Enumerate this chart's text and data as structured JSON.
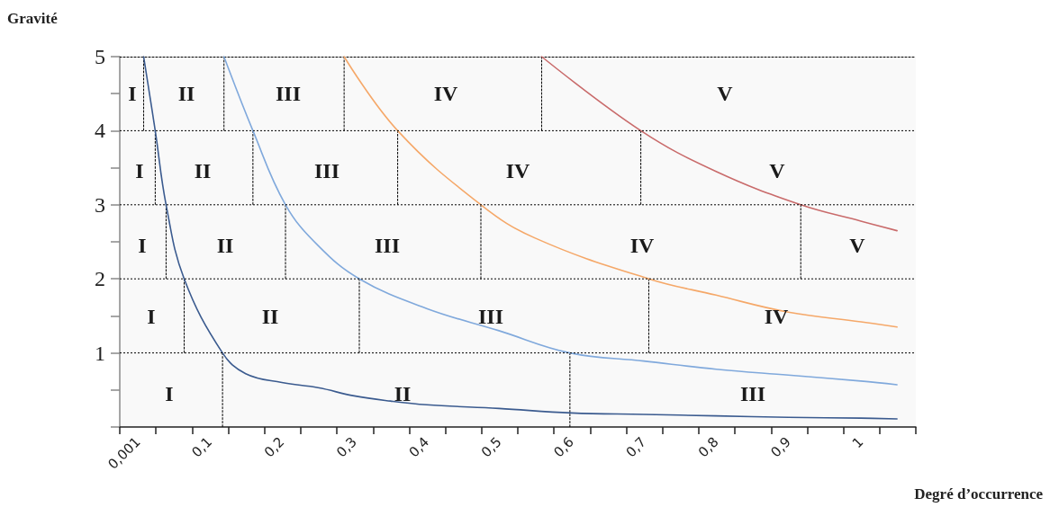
{
  "chart_data": {
    "type": "line",
    "xlabel": "Degré d’occurrence",
    "ylabel": "Gravité",
    "xlim": [
      -0.024,
      1.076
    ],
    "xticks": [
      {
        "value": 0.001,
        "label": "0,001"
      },
      {
        "value": 0.1,
        "label": "0,1"
      },
      {
        "value": 0.2,
        "label": "0,2"
      },
      {
        "value": 0.3,
        "label": "0,3"
      },
      {
        "value": 0.4,
        "label": "0,4"
      },
      {
        "value": 0.5,
        "label": "0,5"
      },
      {
        "value": 0.6,
        "label": "0,6"
      },
      {
        "value": 0.7,
        "label": "0,7"
      },
      {
        "value": 0.8,
        "label": "0,8"
      },
      {
        "value": 0.9,
        "label": "0,9"
      },
      {
        "value": 1,
        "label": "1"
      },
      {
        "value": -0.024,
        "label": null
      },
      {
        "value": 0.026,
        "label": null
      },
      {
        "value": 0.076,
        "label": null
      },
      {
        "value": 0.126,
        "label": null
      },
      {
        "value": 0.176,
        "label": null
      },
      {
        "value": 0.226,
        "label": null
      },
      {
        "value": 0.276,
        "label": null
      },
      {
        "value": 0.326,
        "label": null
      },
      {
        "value": 0.376,
        "label": null
      },
      {
        "value": 0.426,
        "label": null
      },
      {
        "value": 0.476,
        "label": null
      },
      {
        "value": 0.526,
        "label": null
      },
      {
        "value": 0.576,
        "label": null
      },
      {
        "value": 0.626,
        "label": null
      },
      {
        "value": 0.676,
        "label": null
      },
      {
        "value": 0.726,
        "label": null
      },
      {
        "value": 0.776,
        "label": null
      },
      {
        "value": 0.826,
        "label": null
      },
      {
        "value": 0.876,
        "label": null
      },
      {
        "value": 0.926,
        "label": null
      },
      {
        "value": 0.976,
        "label": null
      },
      {
        "value": 1.026,
        "label": null
      },
      {
        "value": 1.076,
        "label": null
      }
    ],
    "ylim": [
      0,
      5
    ],
    "yticks": [
      {
        "value": 0,
        "label": null
      },
      {
        "value": 0.5,
        "label": null
      },
      1,
      {
        "value": 1.5,
        "label": null
      },
      2,
      {
        "value": 2.5,
        "label": null
      },
      3,
      {
        "value": 3.5,
        "label": null
      },
      4,
      {
        "value": 4.5,
        "label": null
      },
      5
    ],
    "grid": false,
    "marker": "none",
    "line_style": "solid",
    "series": [
      {
        "color": "#3b5b8f",
        "x": [
          0.009,
          0.025,
          0.04,
          0.065,
          0.118,
          0.15,
          0.2,
          0.25,
          0.3,
          0.35,
          0.4,
          0.5,
          0.6,
          0.7,
          0.8,
          0.9,
          1.0,
          1.05
        ],
        "values": [
          5,
          4,
          3,
          2,
          1,
          0.72,
          0.6,
          0.53,
          0.42,
          0.35,
          0.3,
          0.25,
          0.19,
          0.17,
          0.15,
          0.13,
          0.12,
          0.11
        ]
      },
      {
        "color": "#80a9dc",
        "x": [
          0.12,
          0.16,
          0.205,
          0.25,
          0.307,
          0.4,
          0.5,
          0.598,
          0.7,
          0.8,
          0.9,
          1.0,
          1.05
        ],
        "values": [
          5,
          4,
          3,
          2.45,
          2,
          1.6,
          1.3,
          1,
          0.89,
          0.78,
          0.7,
          0.62,
          0.57
        ]
      },
      {
        "color": "#f5a869",
        "x": [
          0.286,
          0.36,
          0.475,
          0.55,
          0.707,
          0.8,
          0.9,
          1.0,
          1.05
        ],
        "values": [
          5,
          4,
          3,
          2.55,
          2,
          1.78,
          1.55,
          1.42,
          1.35
        ]
      },
      {
        "color": "#c96b6b",
        "x": [
          0.559,
          0.696,
          0.8,
          0.917,
          1.0,
          1.05
        ],
        "values": [
          5,
          4,
          3.45,
          3,
          2.78,
          2.65
        ]
      },
      {
        "color": "#000000",
        "line_style": "dotted",
        "x": [
          0.009,
          0.009
        ],
        "values": [
          5,
          4
        ]
      },
      {
        "color": "#000000",
        "line_style": "dotted",
        "x": [
          0.12,
          0.12
        ],
        "values": [
          5,
          4
        ]
      },
      {
        "color": "#000000",
        "line_style": "dotted",
        "x": [
          0.286,
          0.286
        ],
        "values": [
          5,
          4
        ]
      },
      {
        "color": "#000000",
        "line_style": "dotted",
        "x": [
          0.559,
          0.559
        ],
        "values": [
          5,
          4
        ]
      },
      {
        "color": "#000000",
        "line_style": "dotted",
        "x": [
          0.025,
          0.025
        ],
        "values": [
          4,
          3
        ]
      },
      {
        "color": "#000000",
        "line_style": "dotted",
        "x": [
          0.16,
          0.16
        ],
        "values": [
          4,
          3
        ]
      },
      {
        "color": "#000000",
        "line_style": "dotted",
        "x": [
          0.36,
          0.36
        ],
        "values": [
          4,
          3
        ]
      },
      {
        "color": "#000000",
        "line_style": "dotted",
        "x": [
          0.696,
          0.696
        ],
        "values": [
          4,
          3
        ]
      },
      {
        "color": "#000000",
        "line_style": "dotted",
        "x": [
          0.04,
          0.04
        ],
        "values": [
          3,
          2
        ]
      },
      {
        "color": "#000000",
        "line_style": "dotted",
        "x": [
          0.205,
          0.205
        ],
        "values": [
          3,
          2
        ]
      },
      {
        "color": "#000000",
        "line_style": "dotted",
        "x": [
          0.475,
          0.475
        ],
        "values": [
          3,
          2
        ]
      },
      {
        "color": "#000000",
        "line_style": "dotted",
        "x": [
          0.917,
          0.917
        ],
        "values": [
          3,
          2
        ]
      },
      {
        "color": "#000000",
        "line_style": "dotted",
        "x": [
          0.065,
          0.065
        ],
        "values": [
          2,
          1
        ]
      },
      {
        "color": "#000000",
        "line_style": "dotted",
        "x": [
          0.307,
          0.307
        ],
        "values": [
          2,
          1
        ]
      },
      {
        "color": "#000000",
        "line_style": "dotted",
        "x": [
          0.707,
          0.707
        ],
        "values": [
          2,
          1
        ]
      },
      {
        "color": "#000000",
        "line_style": "dotted",
        "x": [
          0.118,
          0.118
        ],
        "values": [
          1,
          0
        ]
      },
      {
        "color": "#000000",
        "line_style": "dotted",
        "x": [
          0.598,
          0.598
        ],
        "values": [
          1,
          0
        ]
      }
    ],
    "ref_lines": [
      {
        "axis": "y",
        "value": 1,
        "color": "#000000",
        "line_style": "dotted"
      },
      {
        "axis": "y",
        "value": 2,
        "color": "#000000",
        "line_style": "dotted"
      },
      {
        "axis": "y",
        "value": 3,
        "color": "#000000",
        "line_style": "dotted"
      },
      {
        "axis": "y",
        "value": 4,
        "color": "#000000",
        "line_style": "dotted"
      }
    ],
    "annotations": [
      "I",
      "II",
      "III",
      "IV",
      "V",
      "I",
      "II",
      "III",
      "IV",
      "V",
      "I",
      "II",
      "III",
      "IV",
      "V",
      "I",
      "II",
      "III",
      "IV",
      "I",
      "II",
      "III"
    ]
  }
}
